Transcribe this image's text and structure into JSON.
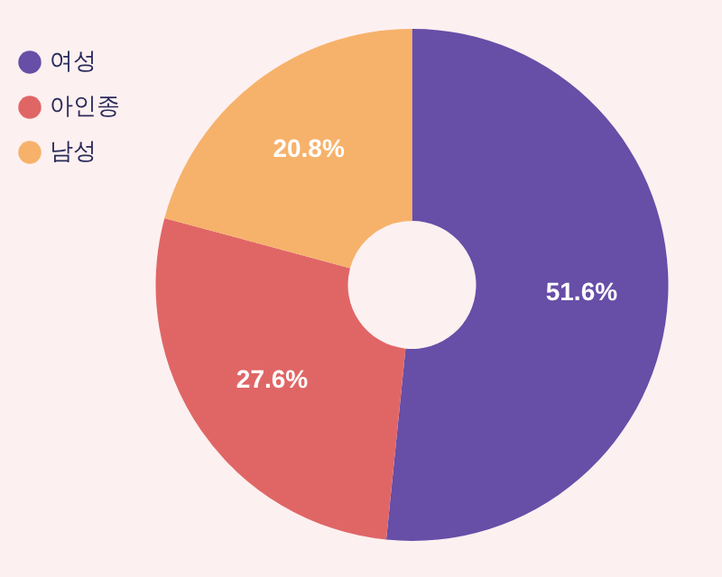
{
  "chart_data": {
    "type": "donut",
    "categories": [
      "여성",
      "아인종",
      "남성"
    ],
    "values": [
      51.6,
      27.6,
      20.8
    ],
    "colors": [
      "#674ea7",
      "#e06666",
      "#f6b26b"
    ],
    "value_labels": [
      "51.6%",
      "27.6%",
      "20.8%"
    ],
    "legend": "top left"
  }
}
